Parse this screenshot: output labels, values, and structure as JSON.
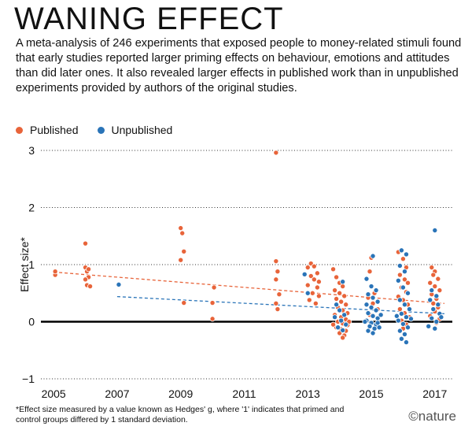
{
  "header": {
    "title": "WANING EFFECT",
    "subtitle": "A meta-analysis of 246 experiments that exposed people to money-related stimuli found that early studies reported larger priming effects on behaviour, emotions and attitudes than did later ones. It also revealed larger effects in published work than in unpublished experiments provided by authors of the original studies."
  },
  "legend": {
    "published": "Published",
    "unpublished": "Unpublished"
  },
  "footnote": "*Effect size measured by a value known as Hedges' g, where '1' indicates that primed and control groups differed by 1 standard deviation.",
  "credit": "©nature",
  "colors": {
    "published": "#e8643a",
    "unpublished": "#2a74b8",
    "trend_published": "#e8643a",
    "trend_unpublished": "#2a74b8"
  },
  "chart_data": {
    "type": "scatter",
    "title": "WANING EFFECT",
    "ylabel": "Effect size*",
    "xlabel": "",
    "xlim": [
      2004.6,
      2017.55
    ],
    "ylim": [
      -1,
      3
    ],
    "xticks": [
      "2005",
      "2007",
      "2009",
      "2011",
      "2013",
      "2015",
      "2017"
    ],
    "yticks": [
      "−1",
      "0",
      "1",
      "2",
      "3"
    ],
    "grid": "horizontal dotted",
    "series": [
      {
        "name": "Published",
        "points": [
          [
            2005.05,
            0.82
          ],
          [
            2005.05,
            0.88
          ],
          [
            2006.0,
            1.37
          ],
          [
            2006.0,
            0.95
          ],
          [
            2006.05,
            0.88
          ],
          [
            2006.1,
            0.78
          ],
          [
            2006.0,
            0.74
          ],
          [
            2006.05,
            0.64
          ],
          [
            2006.15,
            0.62
          ],
          [
            2006.1,
            0.92
          ],
          [
            2009.0,
            1.64
          ],
          [
            2009.05,
            1.55
          ],
          [
            2009.1,
            1.23
          ],
          [
            2009.0,
            1.08
          ],
          [
            2009.1,
            0.33
          ],
          [
            2010.05,
            0.6
          ],
          [
            2010.0,
            0.33
          ],
          [
            2010.0,
            0.05
          ],
          [
            2012.0,
            2.96
          ],
          [
            2012.0,
            1.06
          ],
          [
            2012.05,
            0.88
          ],
          [
            2012.0,
            0.74
          ],
          [
            2012.1,
            0.48
          ],
          [
            2012.0,
            0.32
          ],
          [
            2012.05,
            0.22
          ],
          [
            2013.0,
            0.95
          ],
          [
            2013.1,
            1.02
          ],
          [
            2013.2,
            0.97
          ],
          [
            2013.3,
            0.85
          ],
          [
            2013.1,
            0.8
          ],
          [
            2013.2,
            0.74
          ],
          [
            2013.35,
            0.7
          ],
          [
            2013.0,
            0.64
          ],
          [
            2013.3,
            0.6
          ],
          [
            2013.15,
            0.5
          ],
          [
            2013.35,
            0.45
          ],
          [
            2013.05,
            0.38
          ],
          [
            2013.25,
            0.32
          ],
          [
            2013.8,
            0.92
          ],
          [
            2013.9,
            0.78
          ],
          [
            2014.0,
            0.68
          ],
          [
            2014.1,
            0.62
          ],
          [
            2013.85,
            0.55
          ],
          [
            2014.0,
            0.5
          ],
          [
            2014.15,
            0.45
          ],
          [
            2013.9,
            0.4
          ],
          [
            2014.05,
            0.35
          ],
          [
            2014.2,
            0.3
          ],
          [
            2013.95,
            0.25
          ],
          [
            2014.1,
            0.2
          ],
          [
            2014.25,
            0.15
          ],
          [
            2013.85,
            0.12
          ],
          [
            2014.05,
            0.08
          ],
          [
            2014.2,
            0.04
          ],
          [
            2013.95,
            0.0
          ],
          [
            2014.1,
            -0.03
          ],
          [
            2014.25,
            -0.06
          ],
          [
            2013.9,
            -0.1
          ],
          [
            2014.05,
            -0.13
          ],
          [
            2014.2,
            -0.16
          ],
          [
            2014.0,
            -0.2
          ],
          [
            2014.15,
            -0.24
          ],
          [
            2014.1,
            -0.28
          ],
          [
            2013.8,
            -0.05
          ],
          [
            2014.3,
            0.0
          ],
          [
            2015.0,
            1.12
          ],
          [
            2014.95,
            0.88
          ],
          [
            2015.1,
            0.5
          ],
          [
            2014.9,
            0.42
          ],
          [
            2015.05,
            0.32
          ],
          [
            2015.2,
            0.22
          ],
          [
            2014.95,
            0.12
          ],
          [
            2015.85,
            1.22
          ],
          [
            2016.0,
            1.1
          ],
          [
            2016.1,
            0.95
          ],
          [
            2015.9,
            0.82
          ],
          [
            2016.05,
            0.74
          ],
          [
            2016.15,
            0.68
          ],
          [
            2015.95,
            0.6
          ],
          [
            2016.1,
            0.52
          ],
          [
            2015.85,
            0.44
          ],
          [
            2016.0,
            0.38
          ],
          [
            2016.15,
            0.3
          ],
          [
            2015.9,
            0.22
          ],
          [
            2016.05,
            0.15
          ],
          [
            2016.2,
            0.08
          ],
          [
            2015.95,
            0.02
          ],
          [
            2016.1,
            -0.05
          ],
          [
            2016.0,
            -0.12
          ],
          [
            2016.9,
            0.95
          ],
          [
            2017.0,
            0.88
          ],
          [
            2016.95,
            0.82
          ],
          [
            2017.1,
            0.75
          ],
          [
            2016.85,
            0.68
          ],
          [
            2017.0,
            0.62
          ],
          [
            2017.15,
            0.55
          ],
          [
            2016.9,
            0.48
          ],
          [
            2017.05,
            0.4
          ],
          [
            2016.95,
            0.32
          ],
          [
            2017.1,
            0.25
          ],
          [
            2017.0,
            0.18
          ],
          [
            2016.85,
            0.1
          ],
          [
            2017.15,
            0.05
          ],
          [
            2017.05,
            -0.02
          ]
        ]
      },
      {
        "name": "Unpublished",
        "points": [
          [
            2007.05,
            0.65
          ],
          [
            2012.9,
            0.83
          ],
          [
            2013.0,
            0.5
          ],
          [
            2014.1,
            0.7
          ],
          [
            2013.9,
            0.3
          ],
          [
            2014.0,
            0.2
          ],
          [
            2014.15,
            0.12
          ],
          [
            2013.85,
            0.08
          ],
          [
            2014.05,
            0.02
          ],
          [
            2014.2,
            -0.05
          ],
          [
            2013.95,
            -0.1
          ],
          [
            2014.1,
            -0.15
          ],
          [
            2015.05,
            1.15
          ],
          [
            2014.85,
            0.75
          ],
          [
            2015.0,
            0.62
          ],
          [
            2015.15,
            0.55
          ],
          [
            2014.9,
            0.48
          ],
          [
            2015.05,
            0.42
          ],
          [
            2015.2,
            0.35
          ],
          [
            2014.85,
            0.3
          ],
          [
            2015.0,
            0.25
          ],
          [
            2015.15,
            0.2
          ],
          [
            2014.9,
            0.15
          ],
          [
            2015.05,
            0.1
          ],
          [
            2015.2,
            0.06
          ],
          [
            2014.85,
            0.02
          ],
          [
            2015.0,
            -0.02
          ],
          [
            2015.15,
            -0.05
          ],
          [
            2014.95,
            -0.08
          ],
          [
            2015.1,
            -0.12
          ],
          [
            2014.9,
            -0.16
          ],
          [
            2015.05,
            -0.2
          ],
          [
            2015.2,
            -0.02
          ],
          [
            2014.8,
            0.0
          ],
          [
            2015.3,
            0.12
          ],
          [
            2015.25,
            -0.1
          ],
          [
            2015.95,
            1.25
          ],
          [
            2016.1,
            1.18
          ],
          [
            2015.9,
            0.98
          ],
          [
            2016.05,
            0.88
          ],
          [
            2015.85,
            0.72
          ],
          [
            2016.0,
            0.6
          ],
          [
            2016.15,
            0.5
          ],
          [
            2015.9,
            0.38
          ],
          [
            2016.05,
            0.3
          ],
          [
            2016.2,
            0.22
          ],
          [
            2015.95,
            0.14
          ],
          [
            2016.1,
            0.08
          ],
          [
            2015.85,
            0.02
          ],
          [
            2016.0,
            -0.04
          ],
          [
            2016.15,
            -0.1
          ],
          [
            2015.9,
            -0.16
          ],
          [
            2016.05,
            -0.22
          ],
          [
            2015.95,
            -0.3
          ],
          [
            2016.1,
            -0.36
          ],
          [
            2015.8,
            0.1
          ],
          [
            2016.25,
            0.05
          ],
          [
            2017.0,
            1.6
          ],
          [
            2016.9,
            0.55
          ],
          [
            2017.05,
            0.45
          ],
          [
            2016.85,
            0.38
          ],
          [
            2017.1,
            0.3
          ],
          [
            2016.95,
            0.22
          ],
          [
            2017.15,
            0.14
          ],
          [
            2016.9,
            0.06
          ],
          [
            2017.05,
            0.0
          ],
          [
            2017.2,
            0.08
          ],
          [
            2016.8,
            -0.08
          ],
          [
            2017.0,
            -0.12
          ]
        ]
      }
    ],
    "trend_lines": [
      {
        "name": "Published",
        "x": [
          2005.0,
          2017.3
        ],
        "y": [
          0.87,
          0.32
        ]
      },
      {
        "name": "Unpublished",
        "x": [
          2007.0,
          2017.3
        ],
        "y": [
          0.44,
          0.14
        ]
      }
    ]
  }
}
